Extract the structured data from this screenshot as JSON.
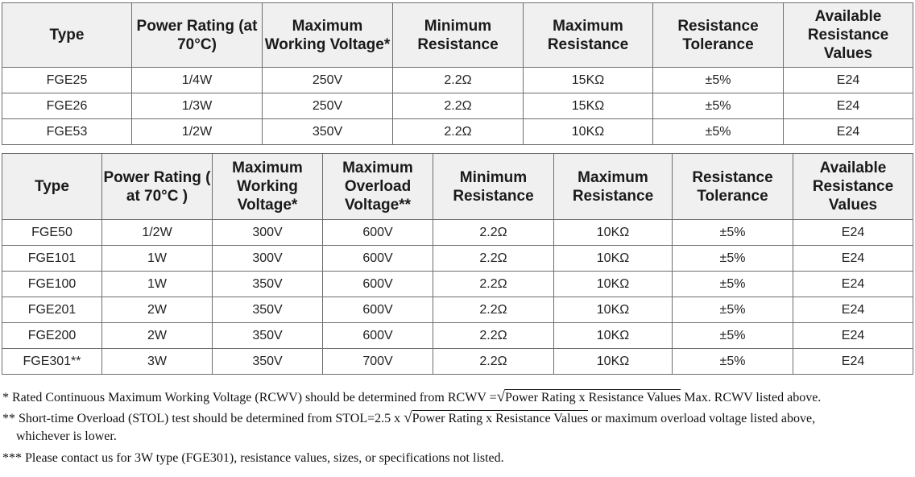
{
  "table1": {
    "headers": [
      "Type",
      "Power Rating (at 70°C)",
      "Maximum Working Voltage*",
      "Minimum Resistance",
      "Maximum Resistance",
      "Resistance Tolerance",
      "Available Resistance Values"
    ],
    "rows": [
      [
        "FGE25",
        "1/4W",
        "250V",
        "2.2Ω",
        "15KΩ",
        "±5%",
        "E24"
      ],
      [
        "FGE26",
        "1/3W",
        "250V",
        "2.2Ω",
        "15KΩ",
        "±5%",
        "E24"
      ],
      [
        "FGE53",
        "1/2W",
        "350V",
        "2.2Ω",
        "10KΩ",
        "±5%",
        "E24"
      ]
    ]
  },
  "table2": {
    "headers": [
      "Type",
      "Power Rating ( at 70°C )",
      "Maximum Working Voltage*",
      "Maximum Overload Voltage**",
      "Minimum Resistance",
      "Maximum Resistance",
      "Resistance Tolerance",
      "Available Resistance Values"
    ],
    "rows": [
      [
        "FGE50",
        "1/2W",
        "300V",
        "600V",
        "2.2Ω",
        "10KΩ",
        "±5%",
        "E24"
      ],
      [
        "FGE101",
        "1W",
        "300V",
        "600V",
        "2.2Ω",
        "10KΩ",
        "±5%",
        "E24"
      ],
      [
        "FGE100",
        "1W",
        "350V",
        "600V",
        "2.2Ω",
        "10KΩ",
        "±5%",
        "E24"
      ],
      [
        "FGE201",
        "2W",
        "350V",
        "600V",
        "2.2Ω",
        "10KΩ",
        "±5%",
        "E24"
      ],
      [
        "FGE200",
        "2W",
        "350V",
        "600V",
        "2.2Ω",
        "10KΩ",
        "±5%",
        "E24"
      ],
      [
        "FGE301**",
        "3W",
        "350V",
        "700V",
        "2.2Ω",
        "10KΩ",
        "±5%",
        "E24"
      ]
    ]
  },
  "notes": {
    "n1_pre": "* Rated Continuous Maximum Working Voltage (RCWV) should be determined from  RCWV =",
    "n1_radicand": "Power Rating x Resistance Values",
    "n1_post": " Max. RCWV listed above.",
    "n2_pre": "** Short-time Overload (STOL) test should be determined from STOL=2.5 x ",
    "n2_radicand": "Power Rating x Resistance Values",
    "n2_post": " or maximum overload voltage listed above,",
    "n2_cont": "whichever is lower.",
    "n3": "*** Please contact us for 3W type (FGE301), resistance values, sizes, or specifications not listed.",
    "radical": "√"
  }
}
